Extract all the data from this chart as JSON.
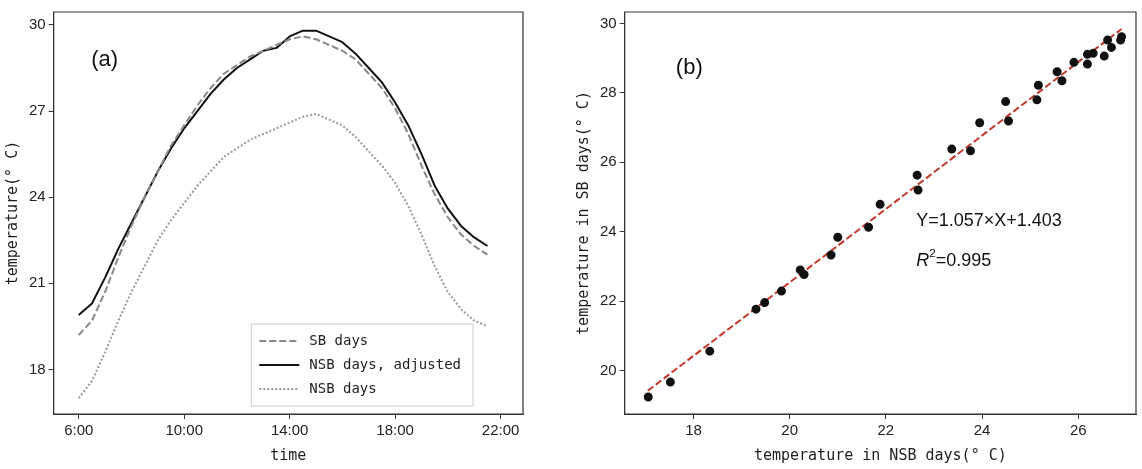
{
  "chart_data": [
    {
      "type": "line",
      "xlabel": "time",
      "ylabel": "temperature(° C)",
      "annotations": [
        "(a)"
      ],
      "legend": "bottom right",
      "grid": false,
      "marker": "none",
      "xlim": [
        5.05,
        22.85
      ],
      "ylim": [
        16.45,
        30.45
      ],
      "xticks": [
        {
          "value": 6,
          "label": "6:00"
        },
        {
          "value": 10,
          "label": "10:00"
        },
        {
          "value": 14,
          "label": "14:00"
        },
        {
          "value": 18,
          "label": "18:00"
        },
        {
          "value": 22,
          "label": "22:00"
        }
      ],
      "yticks": [
        18,
        21,
        24,
        27,
        30
      ],
      "x": [
        6,
        6.5,
        7,
        7.5,
        8,
        8.5,
        9,
        9.5,
        10,
        10.5,
        11,
        11.5,
        12,
        12.5,
        13,
        13.5,
        14,
        14.5,
        15,
        15.5,
        16,
        16.5,
        17,
        17.5,
        18,
        18.5,
        19,
        19.5,
        20,
        20.5,
        21,
        21.5
      ],
      "series": [
        {
          "name": "SB days",
          "color": "#888888",
          "line_style": "dashed",
          "values": [
            19.2,
            19.7,
            20.7,
            21.9,
            23.0,
            24.0,
            24.9,
            25.8,
            26.5,
            27.2,
            27.8,
            28.3,
            28.6,
            28.9,
            29.1,
            29.3,
            29.5,
            29.6,
            29.5,
            29.3,
            29.1,
            28.8,
            28.3,
            27.8,
            27.1,
            26.2,
            25.1,
            24.1,
            23.3,
            22.7,
            22.3,
            22.0
          ]
        },
        {
          "name": "NSB days, adjusted",
          "color": "#111111",
          "line_style": "solid",
          "values": [
            19.9,
            20.3,
            21.2,
            22.2,
            23.1,
            24.0,
            24.9,
            25.7,
            26.4,
            27.0,
            27.6,
            28.1,
            28.5,
            28.8,
            29.1,
            29.2,
            29.6,
            29.8,
            29.8,
            29.6,
            29.4,
            29.0,
            28.5,
            28.0,
            27.3,
            26.5,
            25.5,
            24.4,
            23.6,
            23.0,
            22.6,
            22.3
          ]
        },
        {
          "name": "NSB days",
          "color": "#999999",
          "line_style": "dotted",
          "values": [
            17.0,
            17.6,
            18.6,
            19.7,
            20.7,
            21.6,
            22.5,
            23.2,
            23.8,
            24.4,
            24.9,
            25.4,
            25.7,
            26.0,
            26.2,
            26.4,
            26.6,
            26.8,
            26.9,
            26.7,
            26.5,
            26.1,
            25.6,
            25.1,
            24.5,
            23.7,
            22.7,
            21.6,
            20.7,
            20.1,
            19.7,
            19.5
          ]
        }
      ]
    },
    {
      "type": "scatter",
      "xlabel": "temperature in NSB days(° C)",
      "ylabel": "temperature in SB days(° C)",
      "annotations": [
        "(b)",
        "Y=1.057×X+1.403",
        "R$^{2}$=0.995"
      ],
      "grid": false,
      "xlim": [
        16.57,
        27.2
      ],
      "ylim": [
        18.75,
        30.33
      ],
      "xticks": [
        18,
        20,
        22,
        24,
        26
      ],
      "yticks": [
        20,
        22,
        24,
        26,
        28,
        30
      ],
      "series": [
        {
          "color": "#111111",
          "marker": "circle",
          "x": [
            17.06,
            17.52,
            18.34,
            19.3,
            19.48,
            19.83,
            20.22,
            20.3,
            20.86,
            21.0,
            21.64,
            21.88,
            22.65,
            22.67,
            23.37,
            23.76,
            23.95,
            24.49,
            24.55,
            25.14,
            25.17,
            25.56,
            25.66,
            25.91,
            26.19,
            26.19,
            26.31,
            26.54,
            26.69,
            26.61,
            26.88,
            26.9
          ],
          "values": [
            19.24,
            19.67,
            20.56,
            21.77,
            21.96,
            22.29,
            22.9,
            22.77,
            23.33,
            23.84,
            24.13,
            24.79,
            25.63,
            25.2,
            26.38,
            26.33,
            27.14,
            27.75,
            27.19,
            27.8,
            28.22,
            28.61,
            28.35,
            28.88,
            28.83,
            29.11,
            29.14,
            29.06,
            29.31,
            29.52,
            29.52,
            29.62
          ]
        },
        {
          "type": "line",
          "color": "#c0392b",
          "marker": "none",
          "line_style": "dashed",
          "x": [
            17.05,
            26.9
          ],
          "values": [
            19.42,
            29.84
          ]
        }
      ]
    }
  ]
}
